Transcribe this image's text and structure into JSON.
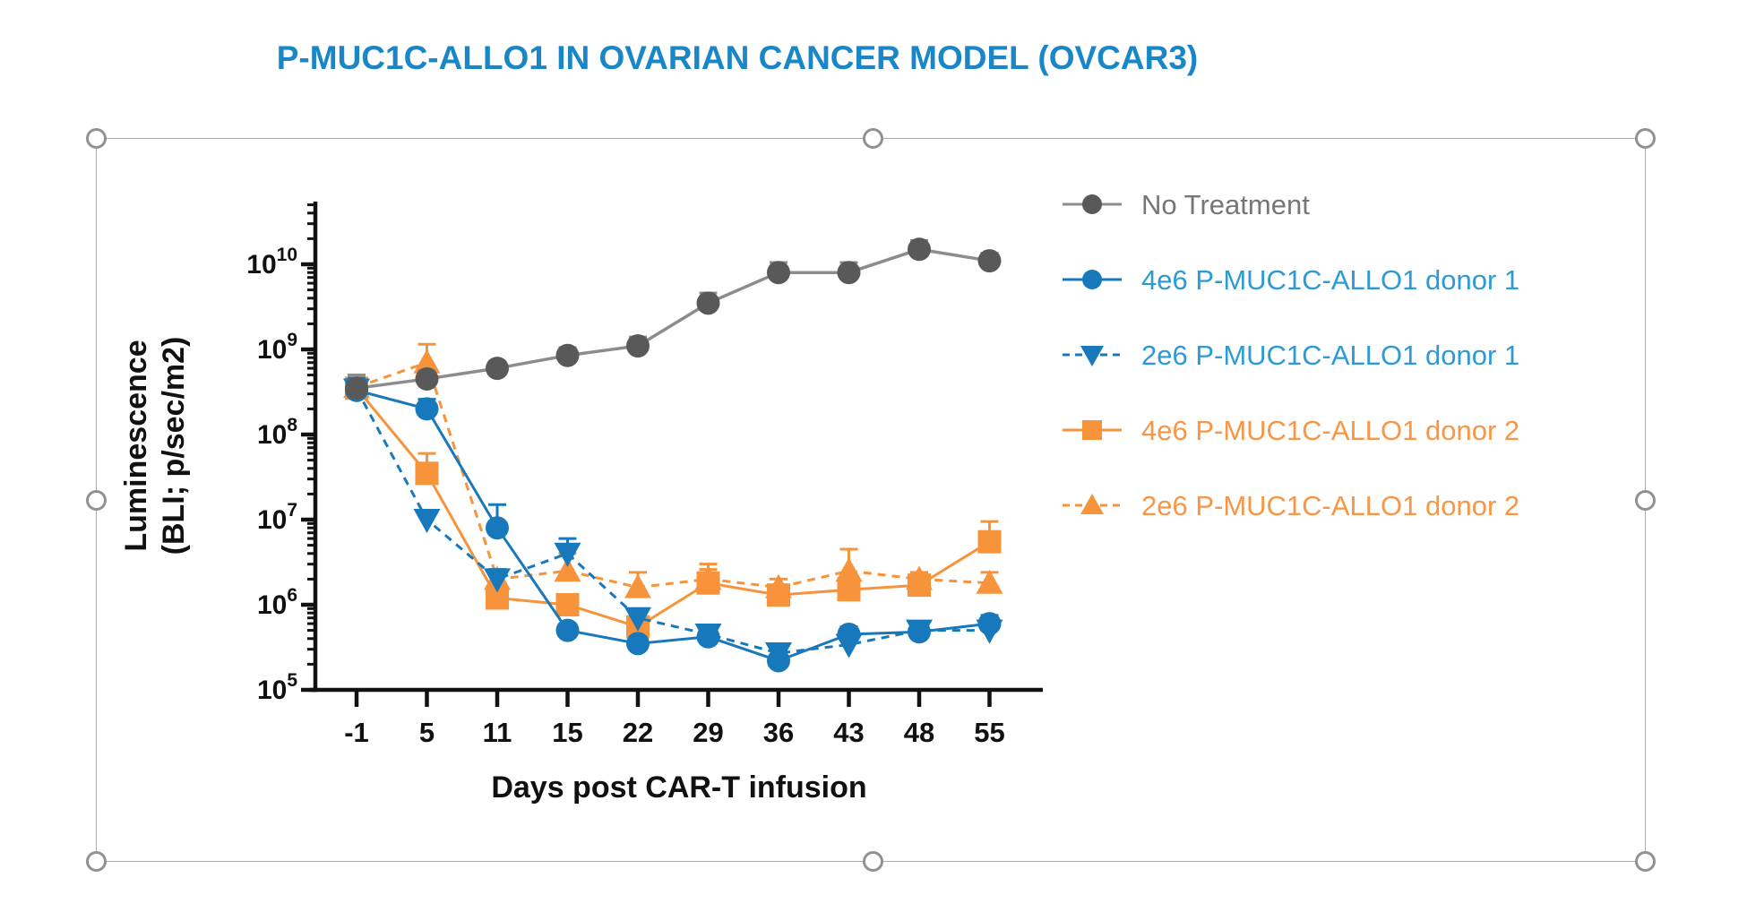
{
  "title": {
    "text": "P-MUC1C-ALLO1 IN OVARIAN CANCER MODEL (OVCAR3)",
    "color": "#1986C8"
  },
  "colors": {
    "axis_black": "#111111",
    "no_treatment_marker": "#595959",
    "no_treatment_line": "#8C8C8C",
    "no_treatment_label": "#767676",
    "donor1_blue": "#1878BC",
    "donor1_label_blue": "#2E9AD4",
    "donor2_orange": "#F6933B",
    "donor2_label_orange": "#F79646",
    "selection_gray": "#ABABAB"
  },
  "chart_data": {
    "type": "line",
    "x_label": "Days post CAR-T infusion",
    "y_label_line1": "Luminescence",
    "y_label_line2": "(BLI; p/sec/m2)",
    "x_categories": [
      "-1",
      "5",
      "11",
      "15",
      "22",
      "29",
      "36",
      "43",
      "48",
      "55"
    ],
    "y_scale": "log10",
    "y_tick_exponents": [
      5,
      6,
      7,
      8,
      9,
      10
    ],
    "ylim": [
      100000,
      50000000000
    ],
    "grid": false,
    "legend_position": "right",
    "error_bars": "upper",
    "series": [
      {
        "name": "No Treatment",
        "marker": "circle",
        "dash": false,
        "color": "#595959",
        "line_color": "#8C8C8C",
        "label_color": "#767676",
        "values": [
          350000000.0,
          450000000.0,
          600000000.0,
          850000000.0,
          1100000000.0,
          3500000000.0,
          8000000000.0,
          8000000000.0,
          15000000000.0,
          11000000000.0
        ],
        "err_top": [
          500000000.0,
          560000000.0,
          720000000.0,
          1050000000.0,
          1400000000.0,
          4600000000.0,
          10500000000.0,
          10500000000.0,
          19000000000.0,
          13500000000.0
        ]
      },
      {
        "name": "4e6 P-MUC1C-ALLO1 donor 1",
        "marker": "circle",
        "dash": false,
        "color": "#1878BC",
        "line_color": "#1878BC",
        "label_color": "#2E9AD4",
        "values": [
          330000000.0,
          200000000.0,
          8000000.0,
          500000.0,
          350000.0,
          420000.0,
          220000.0,
          450000.0,
          480000.0,
          600000.0
        ],
        "err_top": [
          460000000.0,
          260000000.0,
          15000000.0,
          600000.0,
          420000.0,
          500000.0,
          260000.0,
          550000.0,
          600000.0,
          750000.0
        ]
      },
      {
        "name": "2e6 P-MUC1C-ALLO1 donor 1",
        "marker": "triangle-down",
        "dash": true,
        "color": "#1878BC",
        "line_color": "#1878BC",
        "label_color": "#2E9AD4",
        "values": [
          340000000.0,
          10000000.0,
          2000000.0,
          4000000.0,
          700000.0,
          450000.0,
          270000.0,
          340000.0,
          500000.0,
          500000.0
        ],
        "err_top": [
          460000000.0,
          12000000.0,
          2600000.0,
          6000000.0,
          900000.0,
          560000.0,
          320000.0,
          400000.0,
          620000.0,
          620000.0
        ]
      },
      {
        "name": "4e6 P-MUC1C-ALLO1 donor 2",
        "marker": "square",
        "dash": false,
        "color": "#F6933B",
        "line_color": "#F6933B",
        "label_color": "#F79646",
        "values": [
          350000000.0,
          35000000.0,
          1200000.0,
          1000000.0,
          550000.0,
          1800000.0,
          1300000.0,
          1500000.0,
          1700000.0,
          5500000.0
        ],
        "err_top": [
          500000000.0,
          60000000.0,
          1600000.0,
          1300000.0,
          700000.0,
          3000000.0,
          1600000.0,
          1900000.0,
          2100000.0,
          9500000.0
        ]
      },
      {
        "name": "2e6 P-MUC1C-ALLO1 donor 2",
        "marker": "triangle-up",
        "dash": true,
        "color": "#F6933B",
        "line_color": "#F6933B",
        "label_color": "#F79646",
        "values": [
          360000000.0,
          700000000.0,
          2000000.0,
          2500000.0,
          1600000.0,
          2000000.0,
          1600000.0,
          2500000.0,
          2000000.0,
          1800000.0
        ],
        "err_top": [
          500000000.0,
          1150000000.0,
          2600000.0,
          4000000.0,
          2400000.0,
          2600000.0,
          2000000.0,
          4500000.0,
          2400000.0,
          2400000.0
        ]
      }
    ]
  }
}
